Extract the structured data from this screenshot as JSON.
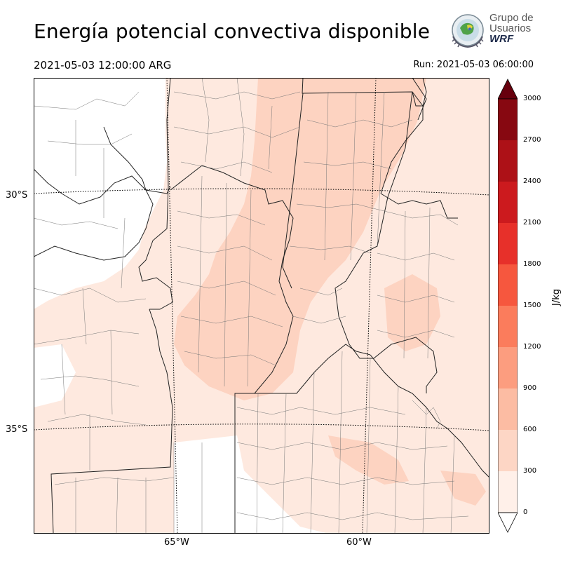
{
  "title": "Energía potencial convectiva disponible",
  "valid_time": "2021-05-03 12:00:00 ARG",
  "run_time": "Run: 2021-05-03 06:00:00",
  "logo": {
    "line1": "Grupo de",
    "line2": "Usuarios",
    "line3": "WRF"
  },
  "map": {
    "lat_labels": [
      "30°S",
      "35°S"
    ],
    "lon_labels": [
      "65°W",
      "60°W"
    ],
    "background_color": "#ffffff",
    "field_colors": [
      "#fee9df",
      "#fdd3c1",
      "#fcbba2",
      "#fc9e80",
      "#fb8060",
      "#f65e47",
      "#ea3a2f",
      "#d01e1f",
      "#b11218",
      "#8a0b12"
    ]
  },
  "colorbar": {
    "unit": "J/kg",
    "ticks": [
      "0",
      "300",
      "600",
      "900",
      "1200",
      "1500",
      "1800",
      "2100",
      "2400",
      "2700",
      "3000"
    ],
    "colors": [
      "#fff0e9",
      "#fdd6c5",
      "#fcbca3",
      "#fc9d7f",
      "#fb7c5c",
      "#f6573e",
      "#e7302a",
      "#cc1a1e",
      "#ad1117",
      "#870811"
    ],
    "extend_max_color": "#67000d"
  }
}
